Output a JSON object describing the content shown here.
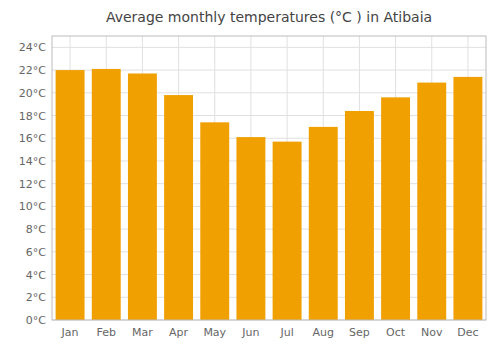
{
  "chart_data": {
    "type": "bar",
    "title": "Average monthly temperatures (°C ) in Atibaia",
    "categories": [
      "Jan",
      "Feb",
      "Mar",
      "Apr",
      "May",
      "Jun",
      "Jul",
      "Aug",
      "Sep",
      "Oct",
      "Nov",
      "Dec"
    ],
    "values": [
      22.0,
      22.1,
      21.7,
      19.8,
      17.4,
      16.1,
      15.7,
      17.0,
      18.4,
      19.6,
      20.9,
      21.4
    ],
    "color": "#F0A000",
    "ylim": [
      0,
      25
    ],
    "yticks": [
      {
        "value": 0,
        "label": "0°C"
      },
      {
        "value": 2,
        "label": "2°C"
      },
      {
        "value": 4,
        "label": "4°C"
      },
      {
        "value": 6,
        "label": "6°C"
      },
      {
        "value": 8,
        "label": "8°C"
      },
      {
        "value": 10,
        "label": "10°C"
      },
      {
        "value": 12,
        "label": "12°C"
      },
      {
        "value": 14,
        "label": "14°C"
      },
      {
        "value": 16,
        "label": "16°C"
      },
      {
        "value": 18,
        "label": "18°C"
      },
      {
        "value": 20,
        "label": "20°C"
      },
      {
        "value": 22,
        "label": "22°C"
      },
      {
        "value": 24,
        "label": "24°C"
      }
    ],
    "grid": true
  }
}
